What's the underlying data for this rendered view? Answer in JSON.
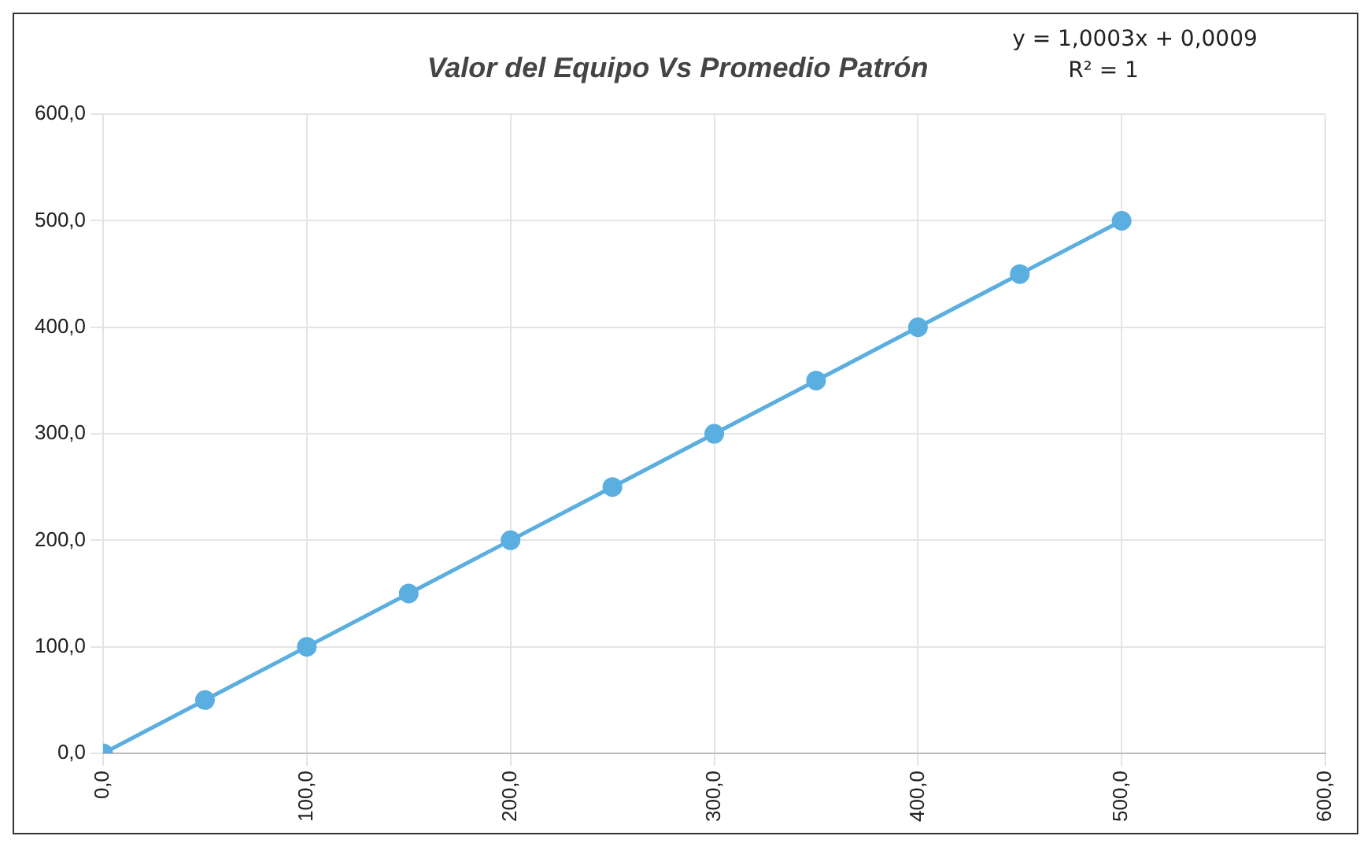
{
  "chart_data": {
    "type": "line",
    "title": "Valor del Equipo Vs Promedio Patrón",
    "x": [
      0,
      50,
      100,
      150,
      200,
      250,
      300,
      350,
      400,
      450,
      500
    ],
    "series": [
      {
        "color": "#5aaee0",
        "values": [
          0,
          50,
          100,
          150,
          200,
          250,
          300,
          350,
          400,
          450,
          500
        ]
      }
    ],
    "xlim": [
      0,
      600
    ],
    "xticks": [
      {
        "value": 0,
        "label": "0,0"
      },
      {
        "value": 100,
        "label": "100,0"
      },
      {
        "value": 200,
        "label": "200,0"
      },
      {
        "value": 300,
        "label": "300,0"
      },
      {
        "value": 400,
        "label": "400,0"
      },
      {
        "value": 500,
        "label": "500,0"
      },
      {
        "value": 600,
        "label": "600,0"
      }
    ],
    "ylim": [
      0,
      600
    ],
    "yticks": [
      {
        "value": 0,
        "label": "0,0"
      },
      {
        "value": 100,
        "label": "100,0"
      },
      {
        "value": 200,
        "label": "200,0"
      },
      {
        "value": 300,
        "label": "300,0"
      },
      {
        "value": 400,
        "label": "400,0"
      },
      {
        "value": 500,
        "label": "500,0"
      },
      {
        "value": 600,
        "label": "600,0"
      }
    ],
    "annotations": [
      "y = 1,0003x + 0,0009",
      "R² = 1"
    ],
    "grid": true,
    "legend": false,
    "marker": "circle",
    "line_style": "solid"
  }
}
